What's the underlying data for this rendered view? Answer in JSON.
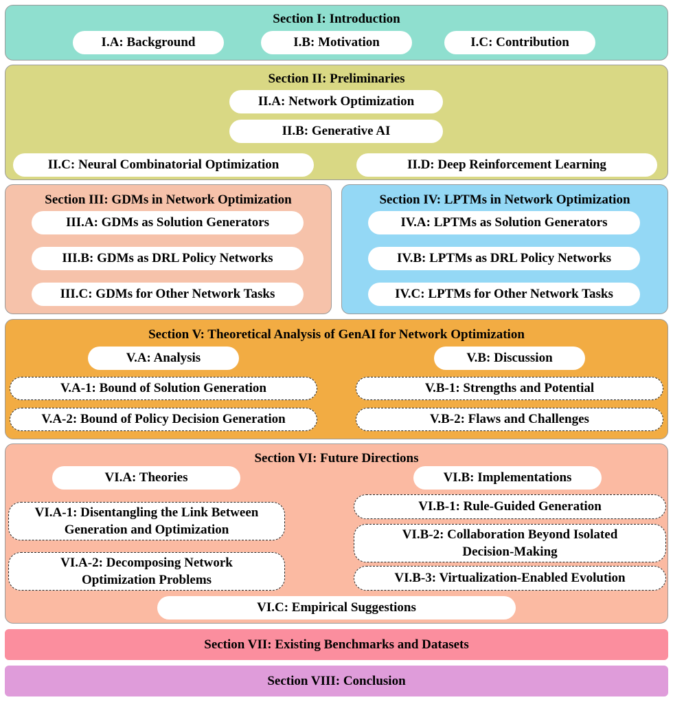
{
  "s1": {
    "title": "Section I: Introduction",
    "a": "I.A: Background",
    "b": "I.B: Motivation",
    "c": "I.C: Contribution"
  },
  "s2": {
    "title": "Section II: Preliminaries",
    "a": "II.A: Network Optimization",
    "b": "II.B: Generative AI",
    "c": "II.C: Neural Combinatorial Optimization",
    "d": "II.D: Deep Reinforcement Learning"
  },
  "s3": {
    "title": "Section III: GDMs in Network Optimization",
    "a": "III.A: GDMs as Solution Generators",
    "b": "III.B: GDMs as DRL Policy Networks",
    "c": "III.C: GDMs for Other Network Tasks"
  },
  "s4": {
    "title": "Section IV: LPTMs in Network Optimization",
    "a": "IV.A: LPTMs as Solution Generators",
    "b": "IV.B: LPTMs as DRL Policy Networks",
    "c": "IV.C: LPTMs for Other Network Tasks"
  },
  "s5": {
    "title": "Section V: Theoretical Analysis of GenAI for Network Optimization",
    "a": "V.A: Analysis",
    "b": "V.B: Discussion",
    "a1": "V.A-1: Bound of Solution Generation",
    "a2": "V.A-2: Bound of Policy Decision Generation",
    "b1": "V.B-1: Strengths and Potential",
    "b2": "V.B-2: Flaws and Challenges"
  },
  "s6": {
    "title": "Section VI: Future Directions",
    "a": "VI.A: Theories",
    "b": "VI.B: Implementations",
    "a1_l1": "VI.A-1: Disentangling the Link Between",
    "a1_l2": "Generation and Optimization",
    "a2_l1": "VI.A-2: Decomposing Network",
    "a2_l2": "Optimization Problems",
    "b1": "VI.B-1: Rule-Guided Generation",
    "b2_l1": "VI.B-2: Collaboration Beyond Isolated",
    "b2_l2": "Decision-Making",
    "b3": "VI.B-3: Virtualization-Enabled Evolution",
    "c": "VI.C: Empirical Suggestions"
  },
  "s7": {
    "title": "Section VII: Existing Benchmarks and Datasets"
  },
  "s8": {
    "title": "Section VIII: Conclusion"
  },
  "colors": {
    "s1": "#8fdfcf",
    "s2": "#d9d884",
    "s3": "#f6c2aa",
    "s4": "#94d8f5",
    "s5": "#f2ac43",
    "s6": "#fbbaa2",
    "s7": "#fb8e9e",
    "s8": "#df9cda"
  }
}
